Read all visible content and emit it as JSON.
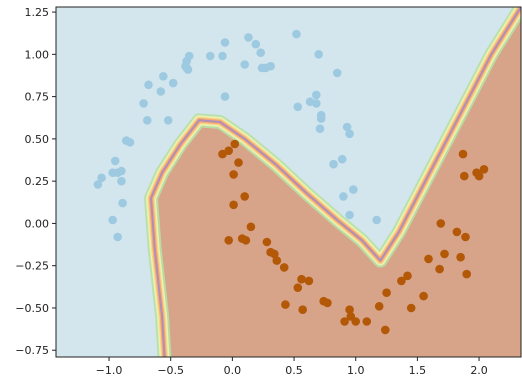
{
  "chart_data": {
    "type": "scatter",
    "title": "",
    "xlabel": "",
    "ylabel": "",
    "xlim": [
      -1.43,
      2.34
    ],
    "ylim": [
      -0.79,
      1.28
    ],
    "xticks": [
      -1.0,
      -0.5,
      0.0,
      0.5,
      1.0,
      1.5,
      2.0
    ],
    "xtick_labels": [
      "−1.0",
      "−0.5",
      "0.0",
      "0.5",
      "1.0",
      "1.5",
      "2.0"
    ],
    "yticks": [
      -0.75,
      -0.5,
      -0.25,
      0.0,
      0.25,
      0.5,
      0.75,
      1.0,
      1.25
    ],
    "ytick_labels": [
      "−0.75",
      "−0.50",
      "−0.25",
      "0.00",
      "0.25",
      "0.50",
      "0.75",
      "1.00",
      "1.25"
    ],
    "grid": false,
    "legend": "none",
    "background_regions": {
      "class_0_color": "#d3e6ee",
      "class_1_color": "#d7a48a",
      "boundary_colors": [
        "#b7e0a5",
        "#f0f5b0",
        "#fbd08a",
        "#f6a46a",
        "#a58cc4"
      ],
      "boundary_polyline": [
        [
          -0.55,
          -0.79
        ],
        [
          -0.57,
          -0.55
        ],
        [
          -0.6,
          -0.35
        ],
        [
          -0.63,
          -0.15
        ],
        [
          -0.66,
          0.15
        ],
        [
          -0.57,
          0.3
        ],
        [
          -0.42,
          0.47
        ],
        [
          -0.27,
          0.61
        ],
        [
          -0.1,
          0.6
        ],
        [
          0.1,
          0.5
        ],
        [
          0.35,
          0.35
        ],
        [
          0.6,
          0.18
        ],
        [
          0.85,
          0.02
        ],
        [
          1.05,
          -0.1
        ],
        [
          1.2,
          -0.22
        ],
        [
          1.35,
          -0.05
        ],
        [
          1.6,
          0.3
        ],
        [
          1.85,
          0.65
        ],
        [
          2.1,
          1.0
        ],
        [
          2.34,
          1.28
        ]
      ]
    },
    "series": [
      {
        "color": "#9ecae1",
        "points": [
          [
            -1.09,
            0.23
          ],
          [
            -1.06,
            0.27
          ],
          [
            -0.95,
            0.37
          ],
          [
            -0.97,
            0.3
          ],
          [
            -0.93,
            0.3
          ],
          [
            -0.9,
            0.31
          ],
          [
            -0.9,
            0.25
          ],
          [
            -0.89,
            0.12
          ],
          [
            -0.97,
            0.02
          ],
          [
            -0.93,
            -0.08
          ],
          [
            -0.86,
            0.49
          ],
          [
            -0.83,
            0.48
          ],
          [
            -0.72,
            0.71
          ],
          [
            -0.69,
            0.61
          ],
          [
            -0.68,
            0.82
          ],
          [
            -0.58,
            0.78
          ],
          [
            -0.56,
            0.87
          ],
          [
            -0.52,
            0.61
          ],
          [
            -0.48,
            0.83
          ],
          [
            -0.38,
            0.93
          ],
          [
            -0.37,
            0.92
          ],
          [
            -0.37,
            0.96
          ],
          [
            -0.36,
            0.91
          ],
          [
            -0.35,
            0.99
          ],
          [
            -0.18,
            0.99
          ],
          [
            -0.08,
            0.99
          ],
          [
            -0.06,
            1.07
          ],
          [
            -0.06,
            0.75
          ],
          [
            0.1,
            0.94
          ],
          [
            0.13,
            1.1
          ],
          [
            0.19,
            1.06
          ],
          [
            0.23,
            1.01
          ],
          [
            0.24,
            0.92
          ],
          [
            0.27,
            0.92
          ],
          [
            0.31,
            0.93
          ],
          [
            0.52,
            1.12
          ],
          [
            0.53,
            0.69
          ],
          [
            0.63,
            0.72
          ],
          [
            0.68,
            0.71
          ],
          [
            0.68,
            0.76
          ],
          [
            0.7,
            1.0
          ],
          [
            0.71,
            0.56
          ],
          [
            0.72,
            0.64
          ],
          [
            0.72,
            0.62
          ],
          [
            0.85,
            0.89
          ],
          [
            0.82,
            0.35
          ],
          [
            0.89,
            0.38
          ],
          [
            0.9,
            0.16
          ],
          [
            0.93,
            0.57
          ],
          [
            0.95,
            0.53
          ],
          [
            0.95,
            0.05
          ],
          [
            0.98,
            0.2
          ],
          [
            1.17,
            0.02
          ]
        ]
      },
      {
        "color": "#b35806",
        "points": [
          [
            -0.08,
            0.41
          ],
          [
            -0.03,
            0.43
          ],
          [
            0.01,
            0.29
          ],
          [
            0.02,
            0.47
          ],
          [
            0.05,
            0.36
          ],
          [
            0.01,
            0.11
          ],
          [
            0.1,
            0.16
          ],
          [
            -0.03,
            -0.1
          ],
          [
            0.08,
            -0.09
          ],
          [
            0.11,
            -0.1
          ],
          [
            0.15,
            -0.02
          ],
          [
            0.28,
            -0.11
          ],
          [
            0.31,
            -0.17
          ],
          [
            0.34,
            -0.18
          ],
          [
            0.36,
            -0.22
          ],
          [
            0.42,
            -0.26
          ],
          [
            0.43,
            -0.48
          ],
          [
            0.53,
            -0.38
          ],
          [
            0.56,
            -0.33
          ],
          [
            0.57,
            -0.51
          ],
          [
            0.62,
            -0.34
          ],
          [
            0.74,
            -0.46
          ],
          [
            0.77,
            -0.47
          ],
          [
            0.91,
            -0.58
          ],
          [
            0.95,
            -0.51
          ],
          [
            0.96,
            -0.55
          ],
          [
            1.0,
            -0.58
          ],
          [
            1.09,
            -0.58
          ],
          [
            1.19,
            -0.49
          ],
          [
            1.24,
            -0.63
          ],
          [
            1.25,
            -0.41
          ],
          [
            1.37,
            -0.34
          ],
          [
            1.42,
            -0.31
          ],
          [
            1.45,
            -0.5
          ],
          [
            1.55,
            -0.43
          ],
          [
            1.59,
            -0.21
          ],
          [
            1.68,
            -0.27
          ],
          [
            1.69,
            0.0
          ],
          [
            1.72,
            -0.18
          ],
          [
            1.82,
            -0.05
          ],
          [
            1.85,
            -0.2
          ],
          [
            1.89,
            -0.08
          ],
          [
            1.9,
            -0.3
          ],
          [
            1.87,
            0.41
          ],
          [
            1.88,
            0.28
          ],
          [
            1.98,
            0.3
          ],
          [
            2.0,
            0.28
          ],
          [
            2.04,
            0.32
          ]
        ]
      }
    ]
  }
}
